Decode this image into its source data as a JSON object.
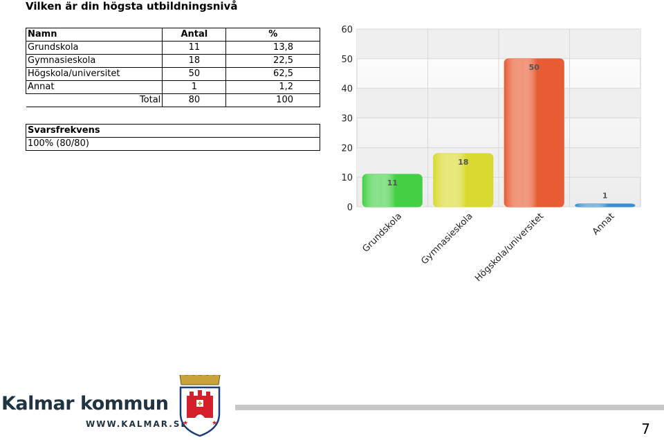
{
  "title": "Vilken är din högsta utbildningsnivå",
  "table": {
    "headers": [
      "Namn",
      "Antal",
      "%"
    ],
    "rows": [
      {
        "name": "Grundskola",
        "count": "11",
        "pct": "13,8"
      },
      {
        "name": "Gymnasieskola",
        "count": "18",
        "pct": "22,5"
      },
      {
        "name": "Högskola/universitet",
        "count": "50",
        "pct": "62,5"
      },
      {
        "name": "Annat",
        "count": "1",
        "pct": "1,2"
      }
    ],
    "total_label": "Total",
    "total_count": "80",
    "total_pct": "100"
  },
  "response": {
    "header": "Svarsfrekvens",
    "value": "100% (80/80)"
  },
  "chart_data": {
    "type": "bar",
    "categories": [
      "Grundskola",
      "Gymnasieskola",
      "Högskola/universitet",
      "Annat"
    ],
    "values": [
      11,
      18,
      50,
      1
    ],
    "data_labels": [
      "11",
      "18",
      "50",
      "1"
    ],
    "colors": [
      "#44d044",
      "#d9d931",
      "#e85c33",
      "#3a8fd0"
    ],
    "ylim": [
      0,
      60
    ],
    "yticks": [
      0,
      10,
      20,
      30,
      40,
      50,
      60
    ],
    "grid": true
  },
  "footer": {
    "org_name": "Kalmar kommun",
    "url": "WWW.KALMAR.SE",
    "page_number": "7"
  }
}
